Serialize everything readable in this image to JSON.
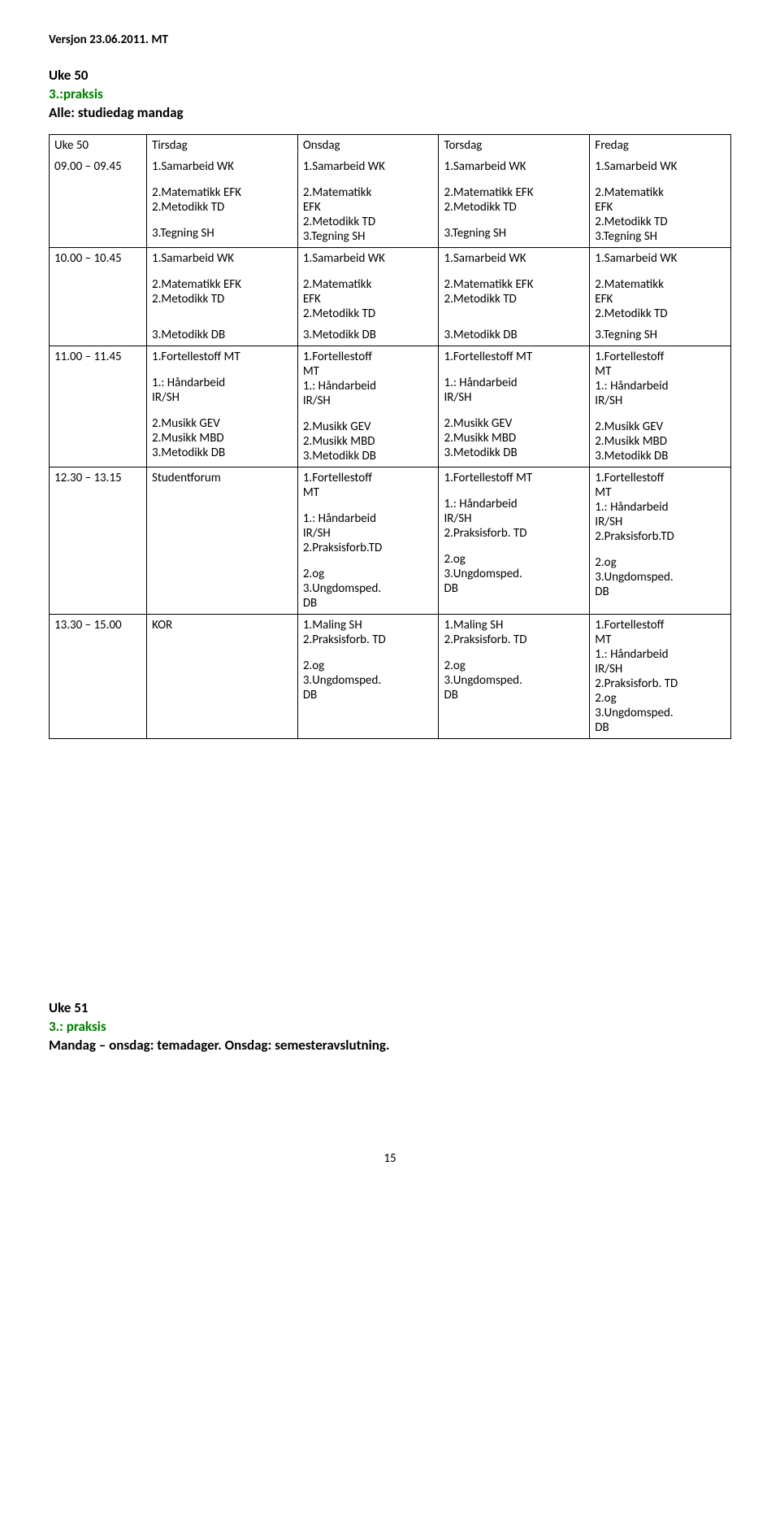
{
  "header": {
    "version": "Versjon 23.06.2011. MT"
  },
  "section1": {
    "uke_title": "Uke 50",
    "praksis": "3.:praksis",
    "subheading": "Alle: studiedag mandag"
  },
  "days": {
    "col0": "Uke 50",
    "col1": "Tirsdag",
    "col2": "Onsdag",
    "col3": "Torsdag",
    "col4": "Fredag"
  },
  "times": {
    "r1": "09.00 – 09.45",
    "r2": "10.00 – 10.45",
    "r3": "11.00 – 11.45",
    "r4": "12.30 – 13.15",
    "r5": "13.30 – 15.00"
  },
  "labels": {
    "samarbeid": "1.Samarbeid WK",
    "mat_efk": "2.Matematikk EFK",
    "mat": "2.Matematikk",
    "efk": "EFK",
    "met_td": "2.Metodikk TD",
    "tegn_sh": "3.Tegning SH",
    "met_db": "3.Metodikk DB",
    "fort_mt": "1.Fortellestoff MT",
    "fort": "1.Fortellestoff",
    "mt": "MT",
    "hand": "1.: Håndarbeid",
    "irsh": "IR/SH",
    "mus_gev": "2.Musikk GEV",
    "mus_mbd": "2.Musikk MBD",
    "studentforum": "Studentforum",
    "kor": "KOR",
    "praksis_td": "2.Praksisforb.TD",
    "praksis_td_sp": "2.Praksisforb. TD",
    "og": "2.og",
    "ungdom": "3.Ungdomsped.",
    "db": "DB",
    "maling_sh": "1.Maling SH"
  },
  "section2": {
    "uke_title": "Uke 51",
    "praksis": "3.: praksis",
    "subheading": "Mandag – onsdag: temadager. Onsdag: semesteravslutning."
  },
  "page_number": "15"
}
